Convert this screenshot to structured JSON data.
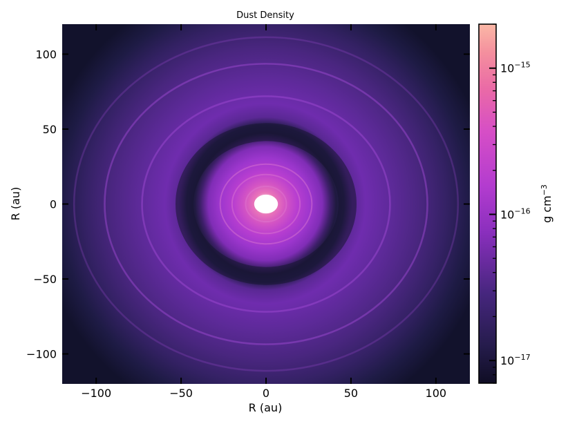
{
  "chart_data": {
    "type": "heatmap",
    "title": "Dust Density",
    "xlabel": "R (au)",
    "ylabel": "R (au)",
    "xlim": [
      -120,
      120
    ],
    "ylim": [
      -120,
      120
    ],
    "xticks": [
      -100,
      -50,
      0,
      50,
      100
    ],
    "xtick_labels": [
      "−100",
      "−50",
      "0",
      "50",
      "100"
    ],
    "yticks": [
      100,
      50,
      0,
      -50,
      -100
    ],
    "ytick_labels": [
      "100",
      "50",
      "0",
      "−50",
      "−100"
    ],
    "colorbar": {
      "label": "g cm−3",
      "label_base": "g cm",
      "label_exp": "−3",
      "scale": "log",
      "range": [
        7e-18,
        2e-15
      ],
      "colormap": "magma",
      "ticks": [
        {
          "value": 1e-15,
          "base": "10",
          "exp": "−15"
        },
        {
          "value": 1e-16,
          "base": "10",
          "exp": "−16"
        },
        {
          "value": 1e-17,
          "base": "10",
          "exp": "−17"
        }
      ]
    },
    "features": {
      "inner_hole_radius_au": 7,
      "gap_center_au": 48,
      "rings_au": [
        12,
        20,
        27,
        73,
        95,
        113
      ]
    }
  }
}
